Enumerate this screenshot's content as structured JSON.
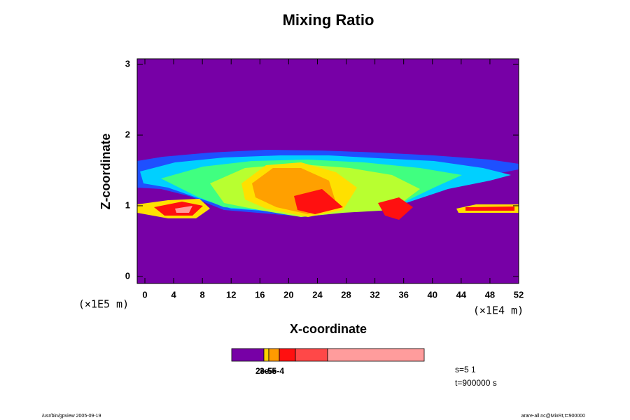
{
  "chart_data": {
    "type": "contour",
    "title": "Mixing Ratio",
    "x_label": "X-coordinate",
    "y_label": "Z-coordinate",
    "x_unit": "(×1E4 m)",
    "y_unit": "(×1E5 m)",
    "xlim": [
      -1.07,
      52
    ],
    "ylim": [
      -0.1,
      3.08
    ],
    "xticks": [
      0,
      4,
      8,
      12,
      16,
      20,
      24,
      28,
      32,
      36,
      40,
      44,
      48,
      52
    ],
    "yticks": [
      0,
      1,
      2,
      3
    ],
    "colorbar": {
      "colors": [
        "#7700a6",
        "#ffd000",
        "#ff9a00",
        "#ff1010",
        "#ff4848",
        "#ff9c9c"
      ],
      "ticks": [
        {
          "value": 2e-05,
          "label": "2e-5"
        },
        {
          "value": 3e-05,
          "label": "3e-5"
        },
        {
          "value": 0.0005,
          "label": "5e-4"
        }
      ]
    },
    "notes": [
      "s=5 1",
      "t=900000 s"
    ],
    "footer_left": "/usr/bin/gpview 2005-09-19",
    "footer_right": "arare-all.nc@MixRt,t=900000"
  }
}
